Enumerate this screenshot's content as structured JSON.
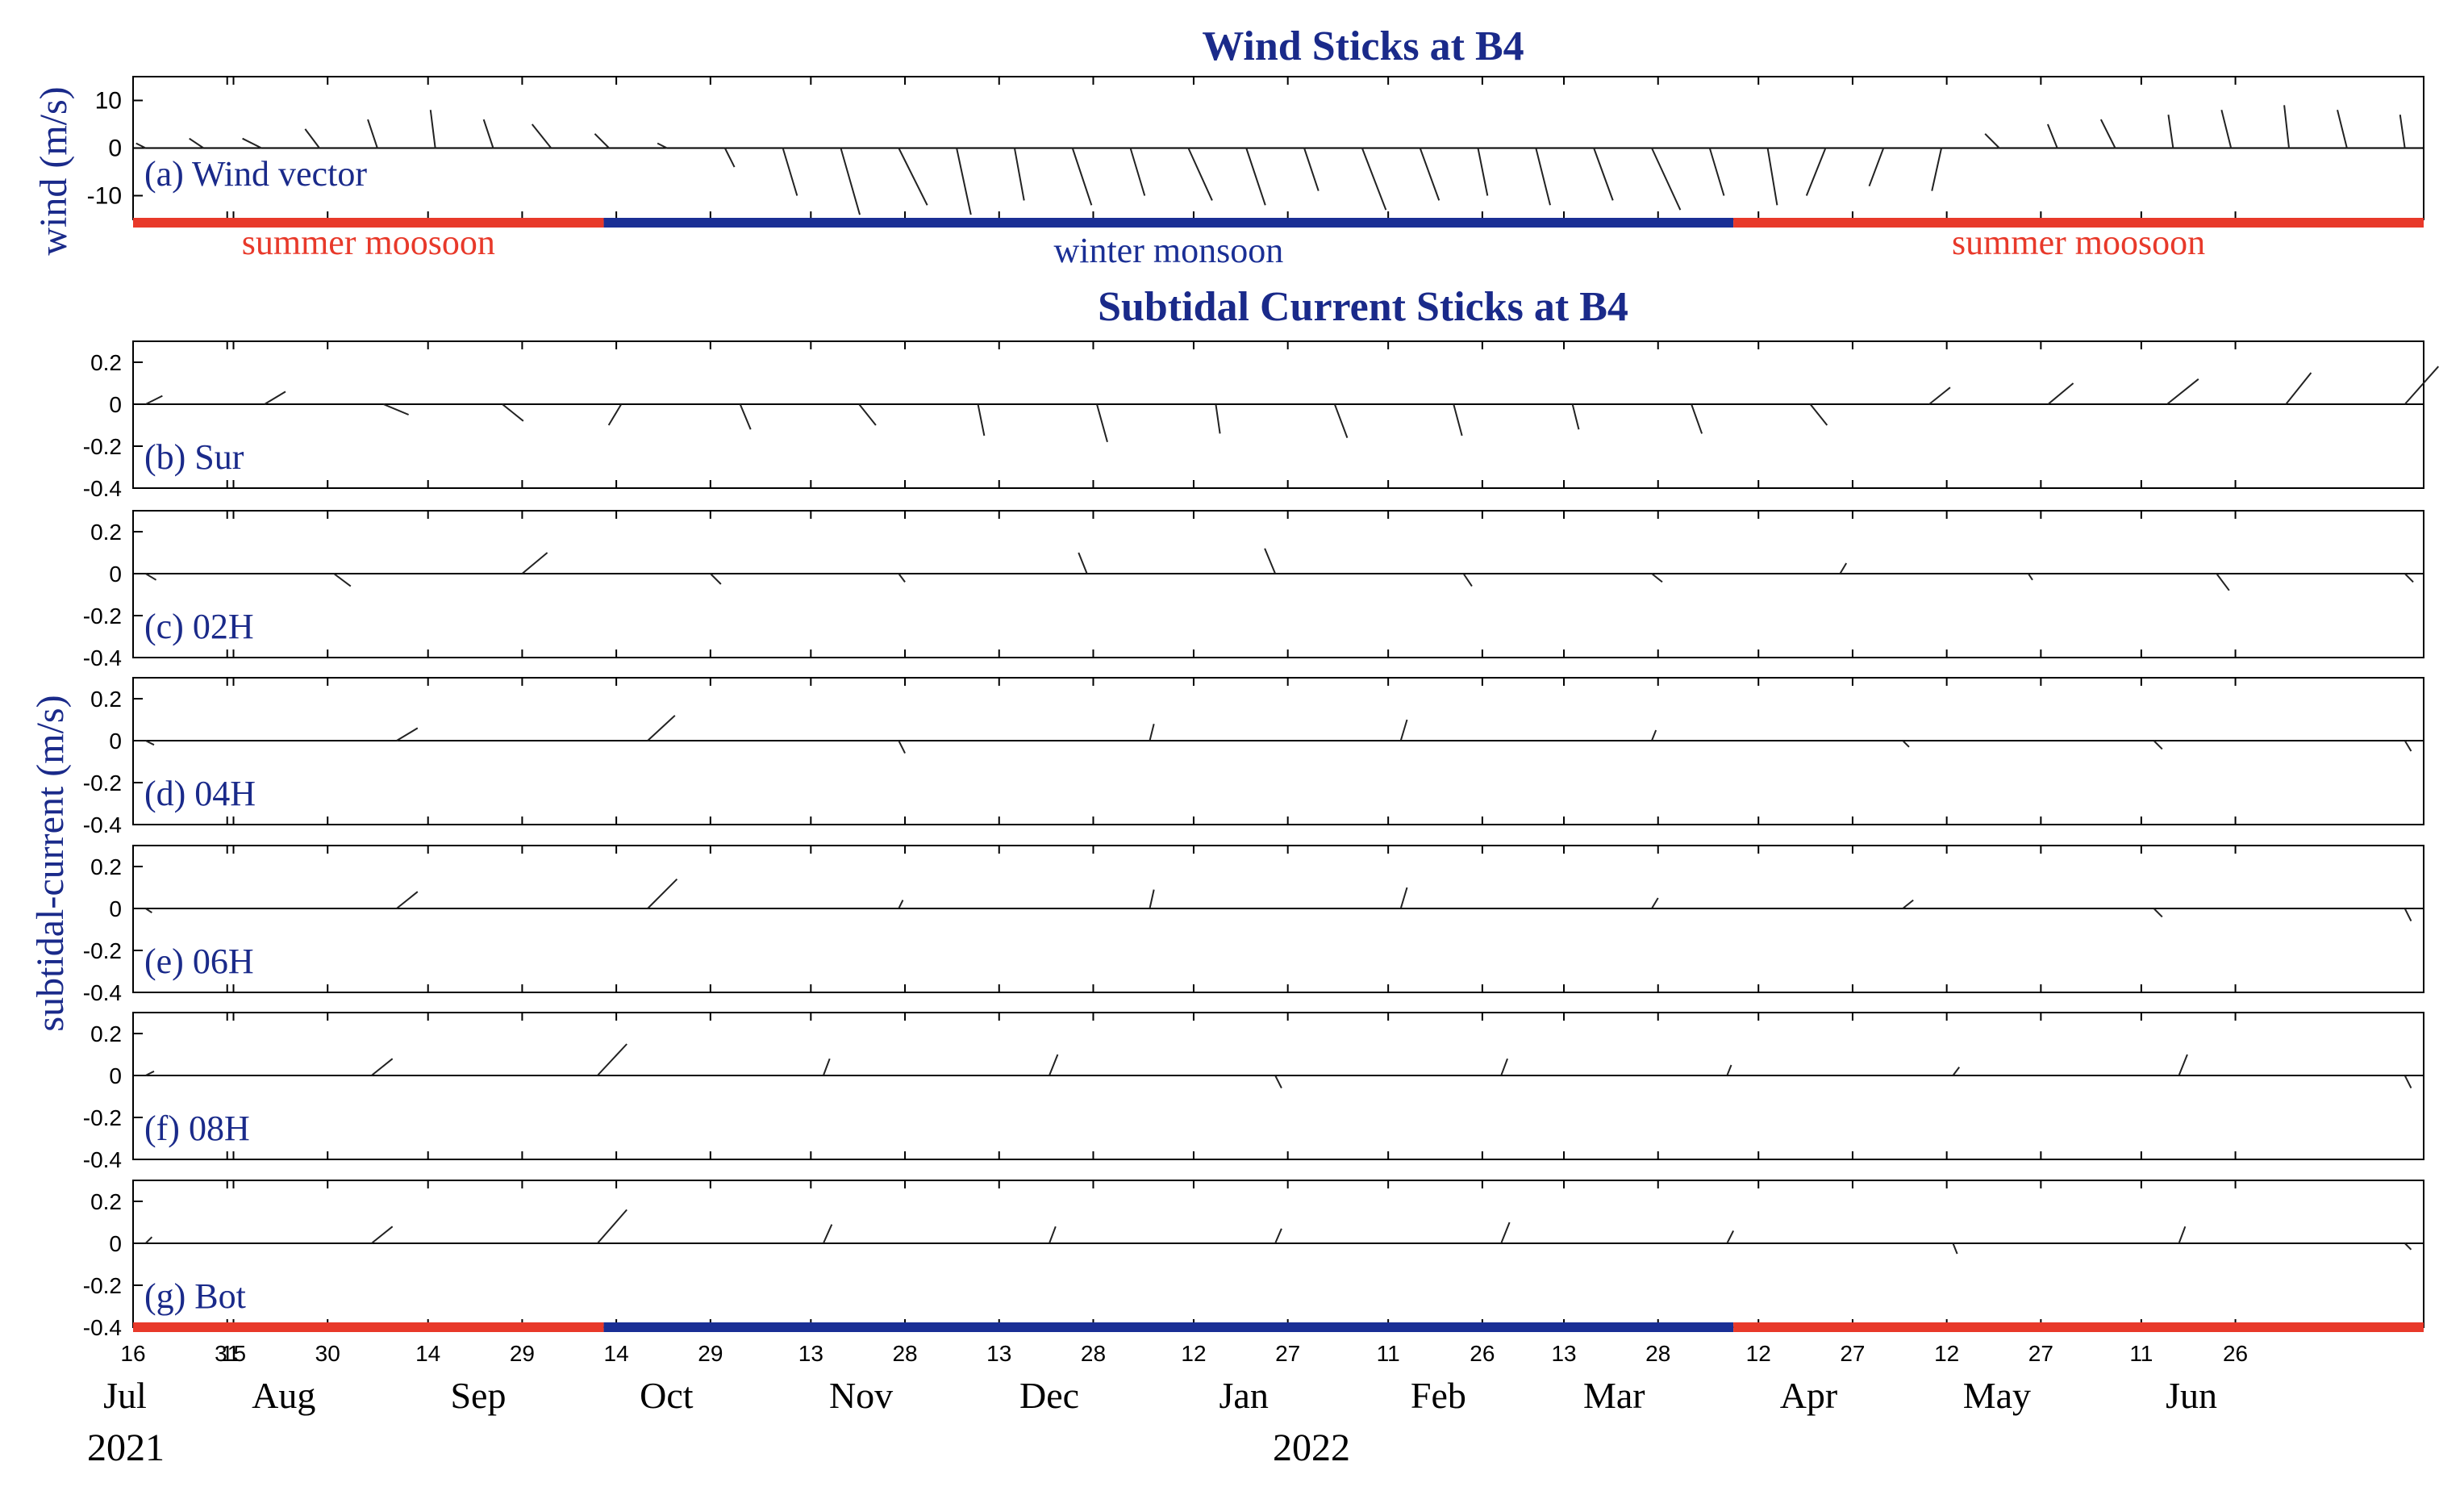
{
  "figure": {
    "wind_title": "Wind Sticks at B4",
    "current_title": "Subtidal Current Sticks at B4",
    "wind_ylabel": "wind (m/s)",
    "current_ylabel": "subtidal-current (m/s)",
    "year_labels": [
      "2021",
      "2022"
    ],
    "colors": {
      "title": "#1a2a8a",
      "summer": "#e8392a",
      "winter": "#1a2f95",
      "sticks": "#222222",
      "axis": "#000000"
    }
  },
  "chart_data": {
    "type": "stick-plot",
    "wind_panel": {
      "label": "(a) Wind vector",
      "ylim": [
        -15,
        15
      ],
      "yticks": [
        10,
        0,
        -10
      ],
      "sticks": [
        [
          -2,
          1
        ],
        [
          -3,
          2
        ],
        [
          -4,
          2
        ],
        [
          -3,
          4
        ],
        [
          -2,
          6
        ],
        [
          -1,
          8
        ],
        [
          -2,
          6
        ],
        [
          -4,
          5
        ],
        [
          -3,
          3
        ],
        [
          -2,
          1
        ],
        [
          2,
          -4
        ],
        [
          3,
          -10
        ],
        [
          4,
          -14
        ],
        [
          6,
          -12
        ],
        [
          3,
          -14
        ],
        [
          2,
          -11
        ],
        [
          4,
          -12
        ],
        [
          3,
          -10
        ],
        [
          5,
          -11
        ],
        [
          4,
          -12
        ],
        [
          3,
          -9
        ],
        [
          5,
          -13
        ],
        [
          4,
          -11
        ],
        [
          2,
          -10
        ],
        [
          3,
          -12
        ],
        [
          4,
          -11
        ],
        [
          6,
          -13
        ],
        [
          3,
          -10
        ],
        [
          2,
          -12
        ],
        [
          -4,
          -10
        ],
        [
          -3,
          -8
        ],
        [
          -2,
          -9
        ],
        [
          -3,
          3
        ],
        [
          -2,
          5
        ],
        [
          -3,
          6
        ],
        [
          -1,
          7
        ],
        [
          -2,
          8
        ],
        [
          -1,
          9
        ],
        [
          -2,
          8
        ],
        [
          -1,
          7
        ]
      ],
      "seasons": [
        {
          "name": "summer moosoon",
          "start_day": 0,
          "end_day": 75,
          "color": "#e8392a"
        },
        {
          "name": "winter monsoon",
          "start_day": 75,
          "end_day": 255,
          "color": "#1a2f95"
        },
        {
          "name": "summer moosoon",
          "start_day": 255,
          "end_day": 365,
          "color": "#e8392a"
        }
      ]
    },
    "current_panels": [
      {
        "label": "(b) Sur",
        "ylim": [
          -0.4,
          0.3
        ],
        "yticks": [
          0.2,
          0,
          -0.2,
          -0.4
        ],
        "sticks": [
          [
            0.08,
            0.04
          ],
          [
            0.1,
            0.06
          ],
          [
            0.12,
            -0.05
          ],
          [
            0.1,
            -0.08
          ],
          [
            -0.06,
            -0.1
          ],
          [
            0.05,
            -0.12
          ],
          [
            0.08,
            -0.1
          ],
          [
            0.03,
            -0.15
          ],
          [
            0.05,
            -0.18
          ],
          [
            0.02,
            -0.14
          ],
          [
            0.06,
            -0.16
          ],
          [
            0.04,
            -0.15
          ],
          [
            0.03,
            -0.12
          ],
          [
            0.05,
            -0.14
          ],
          [
            0.08,
            -0.1
          ],
          [
            0.1,
            0.08
          ],
          [
            0.12,
            0.1
          ],
          [
            0.15,
            0.12
          ],
          [
            0.12,
            0.15
          ],
          [
            0.16,
            0.18
          ]
        ]
      },
      {
        "label": "(c) 02H",
        "ylim": [
          -0.4,
          0.3
        ],
        "yticks": [
          0.2,
          0,
          -0.2,
          -0.4
        ],
        "sticks": [
          [
            0.05,
            -0.03
          ],
          [
            0.08,
            -0.06
          ],
          [
            0.12,
            0.1
          ],
          [
            0.05,
            -0.05
          ],
          [
            0.03,
            -0.04
          ],
          [
            -0.04,
            0.1
          ],
          [
            -0.05,
            0.12
          ],
          [
            0.04,
            -0.06
          ],
          [
            0.05,
            -0.04
          ],
          [
            0.03,
            0.05
          ],
          [
            0.02,
            -0.03
          ],
          [
            0.06,
            -0.08
          ],
          [
            0.04,
            -0.04
          ]
        ]
      },
      {
        "label": "(d) 04H",
        "ylim": [
          -0.4,
          0.3
        ],
        "yticks": [
          0.2,
          0,
          -0.2,
          -0.4
        ],
        "sticks": [
          [
            0.04,
            -0.02
          ],
          [
            0.1,
            0.06
          ],
          [
            0.13,
            0.12
          ],
          [
            0.03,
            -0.06
          ],
          [
            0.02,
            0.08
          ],
          [
            0.03,
            0.1
          ],
          [
            0.02,
            0.05
          ],
          [
            0.03,
            -0.03
          ],
          [
            0.04,
            -0.04
          ],
          [
            0.03,
            -0.05
          ]
        ]
      },
      {
        "label": "(e) 06H",
        "ylim": [
          -0.4,
          0.3
        ],
        "yticks": [
          0.2,
          0,
          -0.2,
          -0.4
        ],
        "sticks": [
          [
            0.03,
            -0.02
          ],
          [
            0.1,
            0.08
          ],
          [
            0.14,
            0.14
          ],
          [
            0.02,
            0.04
          ],
          [
            0.02,
            0.09
          ],
          [
            0.03,
            0.1
          ],
          [
            0.03,
            0.05
          ],
          [
            0.05,
            0.04
          ],
          [
            0.04,
            -0.04
          ],
          [
            0.03,
            -0.06
          ]
        ]
      },
      {
        "label": "(f) 08H",
        "ylim": [
          -0.4,
          0.3
        ],
        "yticks": [
          0.2,
          0,
          -0.2,
          -0.4
        ],
        "sticks": [
          [
            0.04,
            0.02
          ],
          [
            0.1,
            0.08
          ],
          [
            0.14,
            0.15
          ],
          [
            0.03,
            0.08
          ],
          [
            0.04,
            0.1
          ],
          [
            0.03,
            -0.06
          ],
          [
            0.03,
            0.08
          ],
          [
            0.02,
            0.05
          ],
          [
            0.03,
            0.04
          ],
          [
            0.04,
            0.1
          ],
          [
            0.03,
            -0.06
          ]
        ]
      },
      {
        "label": "(g) Bot",
        "ylim": [
          -0.4,
          0.3
        ],
        "yticks": [
          0.2,
          0,
          -0.2,
          -0.4
        ],
        "sticks": [
          [
            0.03,
            0.03
          ],
          [
            0.1,
            0.08
          ],
          [
            0.14,
            0.16
          ],
          [
            0.04,
            0.09
          ],
          [
            0.03,
            0.08
          ],
          [
            0.03,
            0.07
          ],
          [
            0.04,
            0.1
          ],
          [
            0.03,
            0.06
          ],
          [
            0.02,
            -0.05
          ],
          [
            0.03,
            0.08
          ],
          [
            0.03,
            -0.03
          ]
        ]
      }
    ],
    "x_axis": {
      "start": "2021-07-16",
      "end": "2022-07-01",
      "day_ticks": [
        "16",
        "31",
        "15",
        "30",
        "14",
        "29",
        "14",
        "29",
        "13",
        "28",
        "13",
        "28",
        "12",
        "27",
        "11",
        "26",
        "13",
        "28",
        "12",
        "27",
        "12",
        "27",
        "11",
        "26"
      ],
      "month_labels": [
        "Jul",
        "Aug",
        "Sep",
        "Oct",
        "Nov",
        "Dec",
        "Jan",
        "Feb",
        "Mar",
        "Apr",
        "May",
        "Jun"
      ]
    }
  }
}
